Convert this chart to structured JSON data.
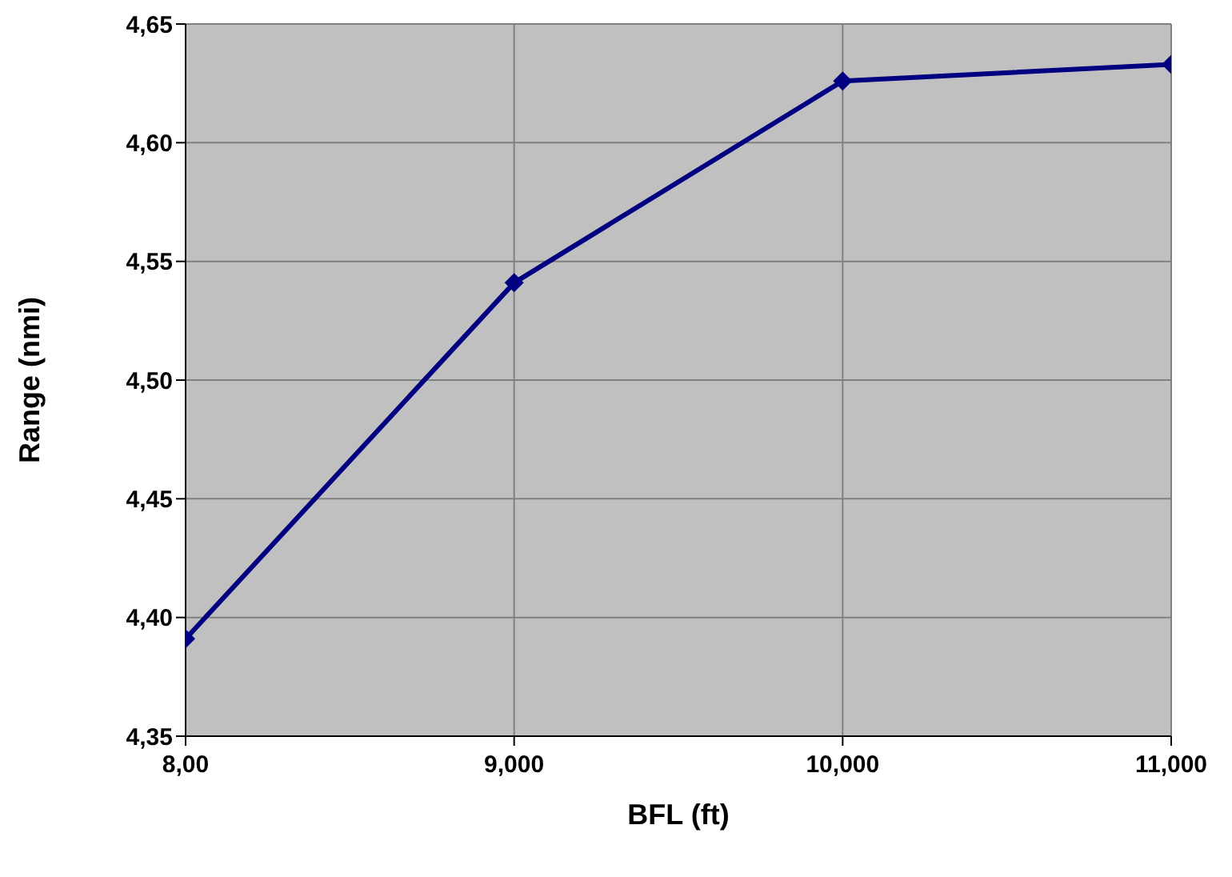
{
  "chart_data": {
    "type": "line",
    "xlabel": "BFL (ft)",
    "ylabel": "Range (nmi)",
    "categories": [
      "8,00",
      "9,000",
      "10,000",
      "11,000"
    ],
    "series": [
      {
        "color": "#000080",
        "values": [
          4.391,
          4.541,
          4.626,
          4.633
        ]
      }
    ],
    "ylim": [
      4.35,
      4.65
    ],
    "yticks": [
      {
        "value": 4.35,
        "label": "4,35"
      },
      {
        "value": 4.4,
        "label": "4,40"
      },
      {
        "value": 4.45,
        "label": "4,45"
      },
      {
        "value": 4.5,
        "label": "4,50"
      },
      {
        "value": 4.55,
        "label": "4,55"
      },
      {
        "value": 4.6,
        "label": "4,60"
      },
      {
        "value": 4.65,
        "label": "4,65"
      }
    ],
    "grid": true,
    "legend": false,
    "marker": "diamond",
    "line_style": "solid"
  }
}
